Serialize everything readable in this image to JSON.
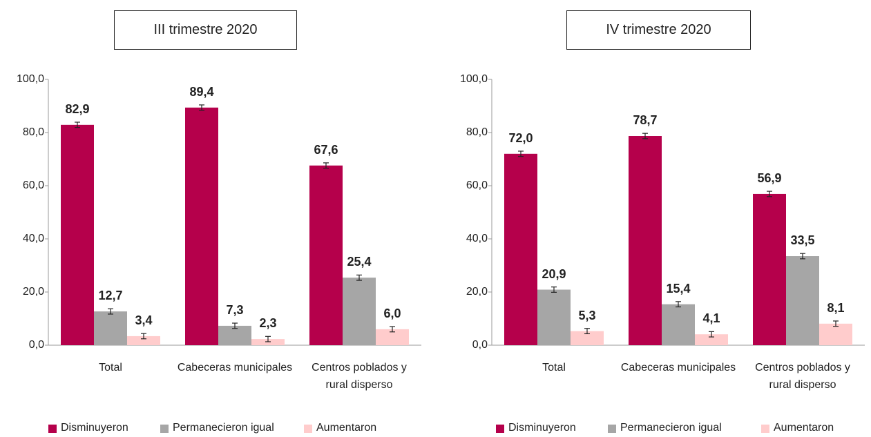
{
  "chart_data": [
    {
      "type": "bar",
      "title": "III trimestre 2020",
      "categories": [
        "Total",
        "Cabeceras municipales",
        "Centros poblados y rural disperso"
      ],
      "series": [
        {
          "name": "Disminuyeron",
          "color": "#b5004b",
          "values": [
            82.9,
            89.4,
            67.6
          ],
          "value_labels": [
            "82,9",
            "89,4",
            "67,6"
          ],
          "errors": [
            1.0,
            1.0,
            1.0
          ]
        },
        {
          "name": "Permanecieron igual",
          "color": "#a6a6a6",
          "values": [
            12.7,
            7.3,
            25.4
          ],
          "value_labels": [
            "12,7",
            "7,3",
            "25,4"
          ],
          "errors": [
            1.0,
            1.0,
            1.0
          ]
        },
        {
          "name": "Aumentaron",
          "color": "#ffcccc",
          "values": [
            3.4,
            2.3,
            6.0
          ],
          "value_labels": [
            "3,4",
            "2,3",
            "6,0"
          ],
          "errors": [
            1.0,
            1.0,
            1.0
          ]
        }
      ],
      "ylim": [
        0,
        100
      ],
      "yticks": [
        {
          "value": 0,
          "label": "0,0"
        },
        {
          "value": 20,
          "label": "20,0"
        },
        {
          "value": 40,
          "label": "40,0"
        },
        {
          "value": 60,
          "label": "60,0"
        },
        {
          "value": 80,
          "label": "80,0"
        },
        {
          "value": 100,
          "label": "100,0"
        }
      ],
      "legend": "bottom"
    },
    {
      "type": "bar",
      "title": "IV trimestre 2020",
      "categories": [
        "Total",
        "Cabeceras municipales",
        "Centros poblados y rural disperso"
      ],
      "series": [
        {
          "name": "Disminuyeron",
          "color": "#b5004b",
          "values": [
            72.0,
            78.7,
            56.9
          ],
          "value_labels": [
            "72,0",
            "78,7",
            "56,9"
          ],
          "errors": [
            1.0,
            1.0,
            1.0
          ]
        },
        {
          "name": "Permanecieron igual",
          "color": "#a6a6a6",
          "values": [
            20.9,
            15.4,
            33.5
          ],
          "value_labels": [
            "20,9",
            "15,4",
            "33,5"
          ],
          "errors": [
            1.0,
            1.0,
            1.0
          ]
        },
        {
          "name": "Aumentaron",
          "color": "#ffcccc",
          "values": [
            5.3,
            4.1,
            8.1
          ],
          "value_labels": [
            "5,3",
            "4,1",
            "8,1"
          ],
          "errors": [
            1.0,
            1.0,
            1.0
          ]
        }
      ],
      "ylim": [
        0,
        100
      ],
      "yticks": [
        {
          "value": 0,
          "label": "0,0"
        },
        {
          "value": 20,
          "label": "20,0"
        },
        {
          "value": 40,
          "label": "40,0"
        },
        {
          "value": 60,
          "label": "60,0"
        },
        {
          "value": 80,
          "label": "80,0"
        },
        {
          "value": 100,
          "label": "100,0"
        }
      ],
      "legend": "bottom"
    }
  ]
}
